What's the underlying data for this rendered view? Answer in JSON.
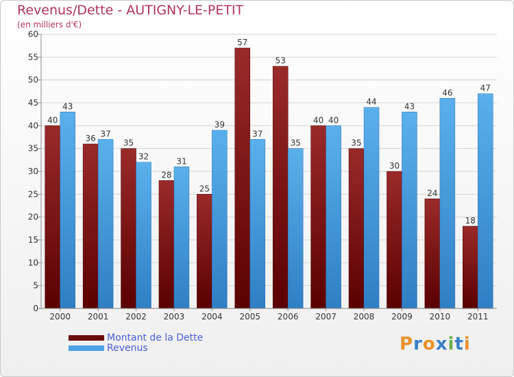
{
  "chart_data": {
    "type": "bar",
    "title": "Revenus/Dette - AUTIGNY-LE-PETIT",
    "subtitle": "(en milliers d'€)",
    "categories": [
      "2000",
      "2001",
      "2002",
      "2003",
      "2004",
      "2005",
      "2006",
      "2007",
      "2008",
      "2009",
      "2010",
      "2011"
    ],
    "series": [
      {
        "name": "Montant de la Dette",
        "color": "#7a1010",
        "values": [
          40,
          36,
          35,
          28,
          25,
          57,
          53,
          40,
          35,
          30,
          24,
          18
        ]
      },
      {
        "name": "Revenus",
        "color": "#4fa3e3",
        "values": [
          43,
          37,
          32,
          31,
          39,
          37,
          35,
          40,
          44,
          43,
          46,
          47
        ]
      }
    ],
    "y_ticks": [
      "0",
      "5",
      "10",
      "15",
      "20",
      "25",
      "30",
      "35",
      "40",
      "45",
      "50",
      "55",
      "60"
    ],
    "ylim": [
      0,
      60
    ],
    "grid": true,
    "legend_position": "bottom-left"
  },
  "logo": {
    "text": "Proxiti",
    "colors": [
      "#e8912a",
      "#3a7fc8",
      "#e8912a",
      "#3a7fc8",
      "#6ab04c",
      "#3a7fc8",
      "#e8912a"
    ]
  }
}
